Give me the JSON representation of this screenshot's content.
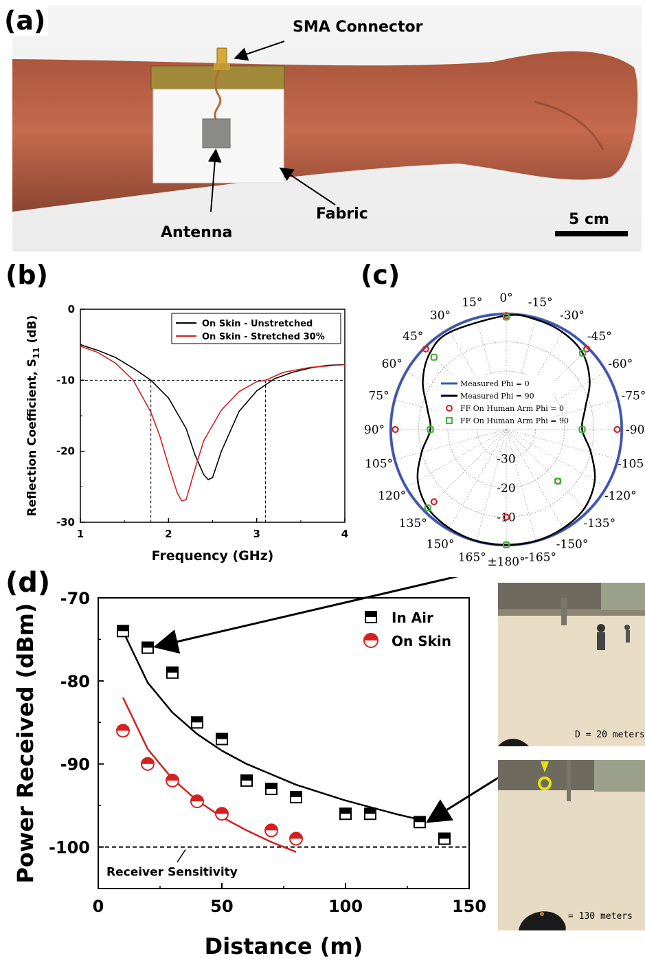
{
  "panels": {
    "a": "(a)",
    "b": "(b)",
    "c": "(c)",
    "d": "(d)"
  },
  "photo_a": {
    "sma_label": "SMA Connector",
    "antenna_label": "Antenna",
    "fabric_label": "Fabric",
    "scale_label": "5 cm"
  },
  "photos_d": {
    "caption1": "D = 20 meters",
    "caption2": "= 130 meters"
  },
  "colors": {
    "black": "#000000",
    "red": "#d42020",
    "blue": "#3b55b5",
    "green": "#44b03c"
  },
  "chart_data": [
    {
      "type": "line",
      "ylabel": "Reflection Coefficient, S11 (dB)",
      "xlabel": "Frequency (GHz)",
      "xlim": [
        1,
        4
      ],
      "ylim": [
        -30,
        0
      ],
      "xticks": [
        "1",
        "2",
        "3",
        "4"
      ],
      "yticks": [
        "0",
        "-10",
        "-20",
        "-30"
      ],
      "legend_position": "top-right",
      "reference_lines": {
        "hline": -10,
        "vlines": [
          1.8,
          3.1
        ]
      },
      "series": [
        {
          "name": "On Skin - Unstretched",
          "color": "#000000",
          "x": [
            1.0,
            1.2,
            1.4,
            1.6,
            1.8,
            2.0,
            2.2,
            2.3,
            2.4,
            2.45,
            2.5,
            2.6,
            2.8,
            3.0,
            3.2,
            3.4,
            3.6,
            3.8,
            4.0
          ],
          "y": [
            -5,
            -5.8,
            -6.8,
            -8.3,
            -10,
            -12.5,
            -16.8,
            -20.5,
            -23.3,
            -24,
            -23.7,
            -20,
            -14.4,
            -11.5,
            -9.8,
            -8.9,
            -8.3,
            -7.9,
            -7.8
          ]
        },
        {
          "name": "On Skin - Stretched 30%",
          "color": "#d42020",
          "x": [
            1.0,
            1.2,
            1.4,
            1.6,
            1.8,
            1.9,
            2.0,
            2.1,
            2.15,
            2.2,
            2.3,
            2.4,
            2.6,
            2.8,
            3.0,
            3.1,
            3.3,
            3.6,
            3.9,
            4.0
          ],
          "y": [
            -5.2,
            -6.1,
            -7.6,
            -10,
            -14.5,
            -17.8,
            -22,
            -25.9,
            -27,
            -26.8,
            -22.5,
            -18.5,
            -14.2,
            -11.6,
            -10.2,
            -10,
            -8.9,
            -8.2,
            -7.9,
            -7.8
          ]
        }
      ]
    },
    {
      "type": "polar",
      "angle_ticks": [
        "0°",
        "15°",
        "30°",
        "45°",
        "60°",
        "75°",
        "90°",
        "105°",
        "120°",
        "135°",
        "150°",
        "165°",
        "±180°",
        "-15°",
        "-30°",
        "-45°",
        "-60°",
        "-75°",
        "-90°",
        "-105°",
        "-120°",
        "-135°",
        "-150°",
        "-165°"
      ],
      "radial_ticks": [
        "-10",
        "-20",
        "-30"
      ],
      "legend_position": "center",
      "series": [
        {
          "name": "Measured Phi = 0",
          "color": "#3b55b5",
          "style": "line",
          "angles_deg": [
            0,
            45,
            90,
            135,
            180,
            225,
            270,
            315
          ],
          "gain_dB": [
            0,
            0,
            0,
            0,
            0,
            0,
            0,
            0
          ]
        },
        {
          "name": "Measured Phi = 90",
          "color": "#000000",
          "style": "line",
          "angles_deg": [
            0,
            30,
            45,
            60,
            75,
            90,
            105,
            120,
            135,
            150,
            165,
            180,
            195,
            210,
            225,
            240,
            255,
            270,
            285,
            300,
            315,
            330,
            345
          ],
          "gain_dB": [
            -1,
            -1.5,
            -3,
            -7,
            -12,
            -14,
            -10,
            -5,
            -2,
            -1,
            -0.5,
            -0.5,
            -0.5,
            -1,
            -2,
            -5,
            -10,
            -14,
            -12,
            -7,
            -3,
            -1.5,
            -1
          ]
        },
        {
          "name": "FF On Human Arm Phi = 0",
          "color": "#d42020",
          "style": "marker",
          "angles_deg": [
            0,
            45,
            90,
            135,
            180,
            225,
            270,
            315
          ],
          "gain_dB": [
            -1,
            -1,
            -2,
            -5,
            -10,
            -15,
            -2,
            -1
          ]
        },
        {
          "name": "FF On Human Arm Phi = 90",
          "color": "#44b03c",
          "style": "marker",
          "angles_deg": [
            0,
            45,
            90,
            135,
            180,
            225,
            270,
            315
          ],
          "gain_dB": [
            -1.5,
            -5,
            -14,
            -2,
            -0.5,
            -15,
            -14,
            -3
          ]
        }
      ]
    },
    {
      "type": "scatter",
      "ylabel": "Power Received (dBm)",
      "xlabel": "Distance (m)",
      "xlim": [
        0,
        150
      ],
      "ylim": [
        -105,
        -70
      ],
      "xticks": [
        "0",
        "50",
        "100",
        "150"
      ],
      "yticks": [
        "-70",
        "-80",
        "-90",
        "-100"
      ],
      "legend_position": "top-right",
      "reference_line": {
        "y": -100,
        "label": "Receiver Sensitivity"
      },
      "series": [
        {
          "name": "In Air",
          "color": "#000000",
          "x": [
            10,
            20,
            30,
            40,
            50,
            60,
            70,
            80,
            100,
            110,
            130,
            140
          ],
          "y": [
            -74,
            -76,
            -79,
            -85,
            -87,
            -92,
            -93,
            -94,
            -96,
            -96,
            -97,
            -99
          ]
        },
        {
          "name": "On Skin",
          "color": "#d42020",
          "x": [
            10,
            20,
            30,
            40,
            50,
            70,
            80
          ],
          "y": [
            -86,
            -90,
            -92,
            -94.5,
            -96,
            -98,
            -99
          ]
        }
      ],
      "fits": [
        {
          "series": "In Air",
          "color": "#000000",
          "x": [
            10,
            20,
            30,
            40,
            50,
            60,
            80,
            100,
            120,
            130
          ],
          "y": [
            -74,
            -80.2,
            -83.8,
            -86.4,
            -88.4,
            -90.0,
            -92.5,
            -94.4,
            -96.0,
            -96.7
          ]
        },
        {
          "series": "On Skin",
          "color": "#d42020",
          "x": [
            10,
            20,
            30,
            40,
            50,
            60,
            70,
            80
          ],
          "y": [
            -82,
            -88.2,
            -91.8,
            -94.4,
            -96.4,
            -98.0,
            -99.4,
            -100.6
          ]
        }
      ]
    }
  ]
}
